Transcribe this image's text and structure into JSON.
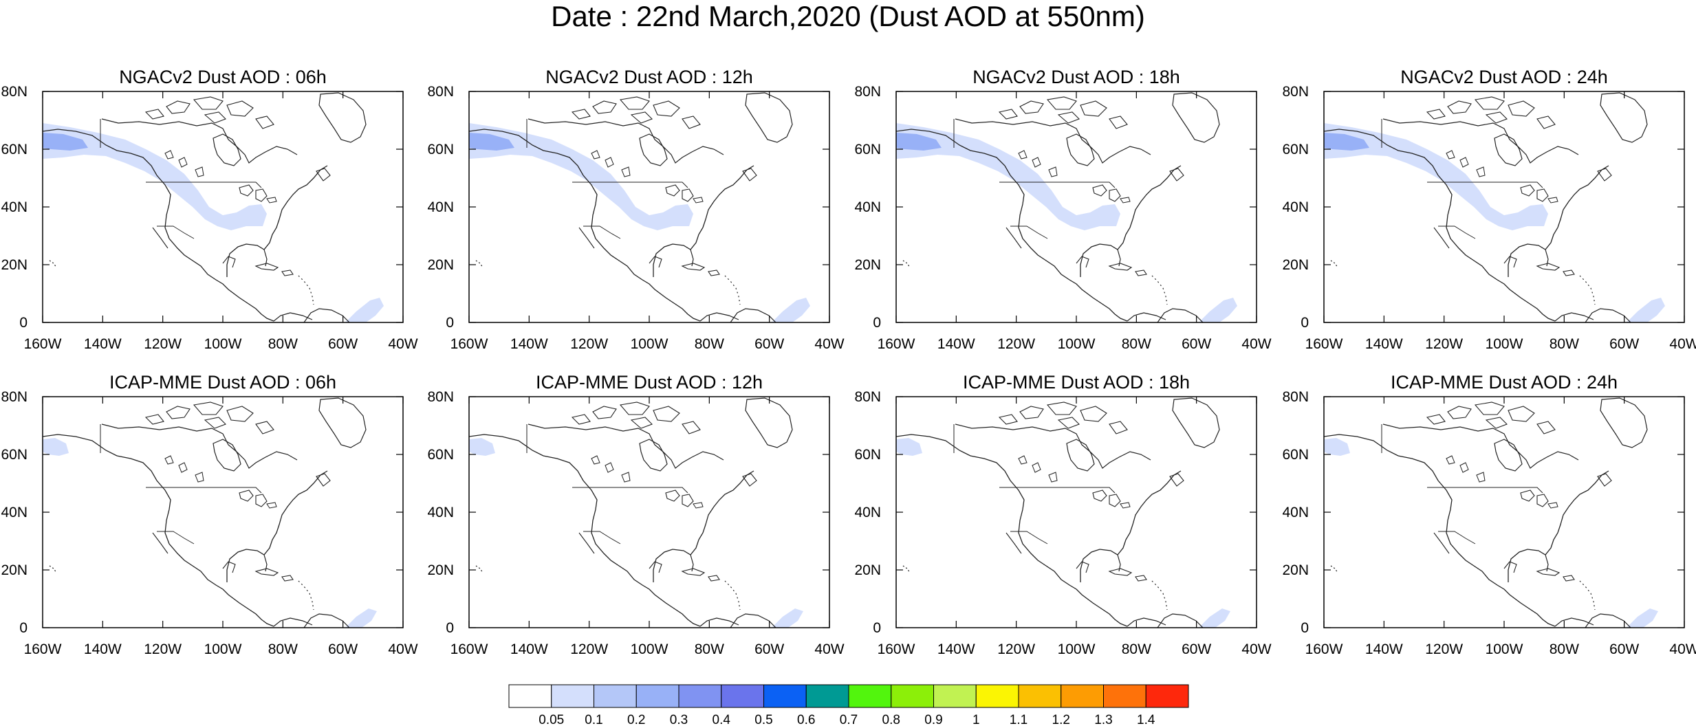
{
  "title": "Date : 22nd March,2020 (Dust AOD at 550nm)",
  "panels": [
    {
      "title": "NGACv2 Dust AOD : 06h",
      "model": "NGACv2",
      "hour": "06h",
      "dust_level": 3
    },
    {
      "title": "NGACv2 Dust AOD : 12h",
      "model": "NGACv2",
      "hour": "12h",
      "dust_level": 3
    },
    {
      "title": "NGACv2 Dust AOD : 18h",
      "model": "NGACv2",
      "hour": "18h",
      "dust_level": 3
    },
    {
      "title": "NGACv2 Dust AOD : 24h",
      "model": "NGACv2",
      "hour": "24h",
      "dust_level": 3
    },
    {
      "title": "ICAP-MME Dust AOD : 06h",
      "model": "ICAP-MME",
      "hour": "06h",
      "dust_level": 1
    },
    {
      "title": "ICAP-MME Dust AOD : 12h",
      "model": "ICAP-MME",
      "hour": "12h",
      "dust_level": 1
    },
    {
      "title": "ICAP-MME Dust AOD : 18h",
      "model": "ICAP-MME",
      "hour": "18h",
      "dust_level": 1
    },
    {
      "title": "ICAP-MME Dust AOD : 24h",
      "model": "ICAP-MME",
      "hour": "24h",
      "dust_level": 1
    }
  ],
  "axes": {
    "x_ticks": [
      "160W",
      "140W",
      "120W",
      "100W",
      "80W",
      "60W",
      "40W"
    ],
    "y_ticks": [
      "0",
      "20N",
      "40N",
      "60N",
      "80N"
    ],
    "lon_range": [
      -160,
      -40
    ],
    "lat_range": [
      0,
      80
    ]
  },
  "colorbar": {
    "labels": [
      "0.05",
      "0.1",
      "0.2",
      "0.3",
      "0.4",
      "0.5",
      "0.6",
      "0.7",
      "0.8",
      "0.9",
      "1",
      "1.1",
      "1.2",
      "1.3",
      "1.4"
    ],
    "colors": [
      "#ffffff",
      "#d4dffc",
      "#b4c7f8",
      "#98b1f7",
      "#8093f2",
      "#6a74ec",
      "#0b61f4",
      "#009a94",
      "#52f50d",
      "#8cef09",
      "#c1f252",
      "#fbf503",
      "#fbc002",
      "#fd9c03",
      "#fe720a",
      "#fe280c"
    ]
  }
}
